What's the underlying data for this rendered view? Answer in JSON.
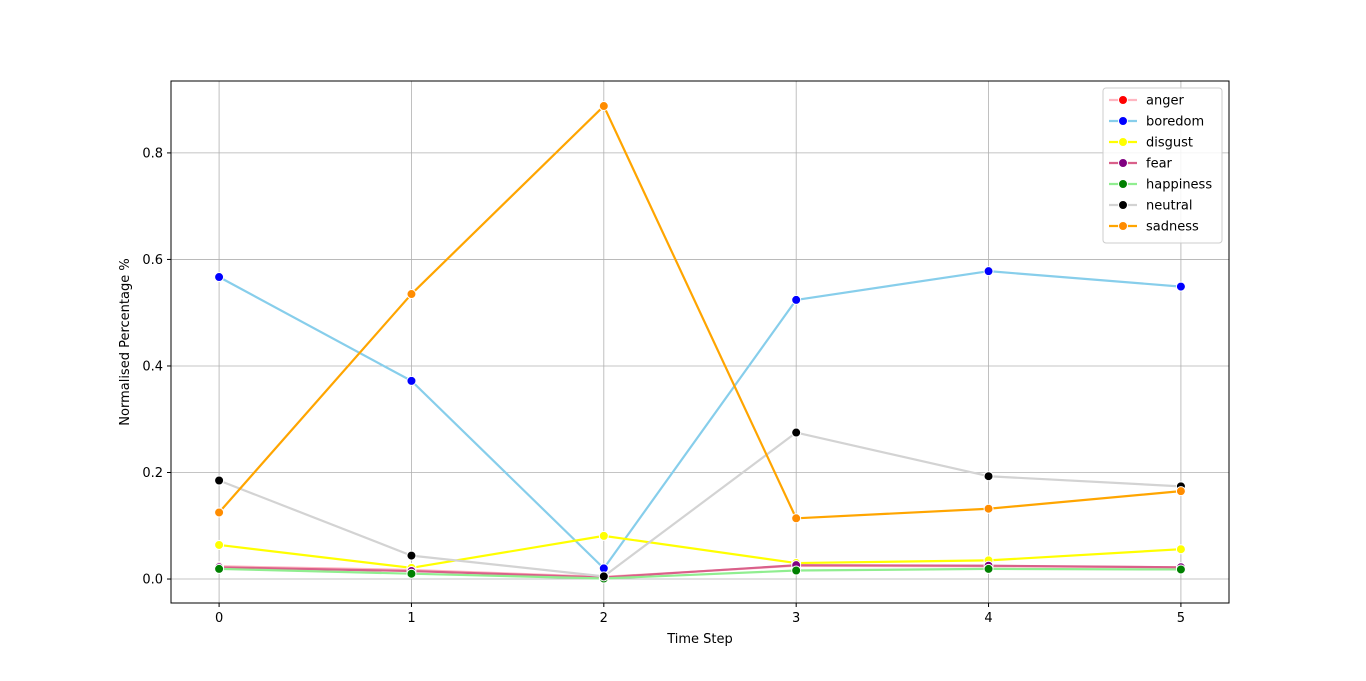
{
  "chart_data": {
    "type": "line",
    "xlabel": "Time Step",
    "ylabel": "Normalised Percentage %",
    "x": [
      0,
      1,
      2,
      3,
      4,
      5
    ],
    "xlim": [
      -0.25,
      5.25
    ],
    "ylim": [
      -0.045,
      0.935
    ],
    "xticks": [
      "0",
      "1",
      "2",
      "3",
      "4",
      "5"
    ],
    "yticks": [
      "0.0",
      "0.2",
      "0.4",
      "0.6",
      "0.8"
    ],
    "ytick_values": [
      0.0,
      0.2,
      0.4,
      0.6,
      0.8
    ],
    "grid": true,
    "legend_position": "top-right",
    "series": [
      {
        "name": "anger",
        "line_color": "#ffb6c1",
        "marker_color": "#ff0000",
        "values": [
          0.024,
          0.017,
          0.004,
          0.025,
          0.024,
          0.022
        ]
      },
      {
        "name": "boredom",
        "line_color": "#87ceeb",
        "marker_color": "#0000ff",
        "values": [
          0.567,
          0.372,
          0.02,
          0.524,
          0.578,
          0.549
        ]
      },
      {
        "name": "disgust",
        "line_color": "#ffff00",
        "marker_color": "#ffff00",
        "values": [
          0.064,
          0.021,
          0.081,
          0.03,
          0.035,
          0.056
        ]
      },
      {
        "name": "fear",
        "line_color": "#d9608a",
        "marker_color": "#800080",
        "values": [
          0.022,
          0.015,
          0.003,
          0.026,
          0.025,
          0.022
        ]
      },
      {
        "name": "happiness",
        "line_color": "#90ee90",
        "marker_color": "#008000",
        "values": [
          0.019,
          0.01,
          0.001,
          0.016,
          0.019,
          0.018
        ]
      },
      {
        "name": "neutral",
        "line_color": "#d3d3d3",
        "marker_color": "#000000",
        "values": [
          0.185,
          0.044,
          0.005,
          0.275,
          0.193,
          0.174
        ]
      },
      {
        "name": "sadness",
        "line_color": "#ffa500",
        "marker_color": "#ff8c00",
        "values": [
          0.125,
          0.535,
          0.888,
          0.114,
          0.132,
          0.165
        ]
      }
    ]
  }
}
